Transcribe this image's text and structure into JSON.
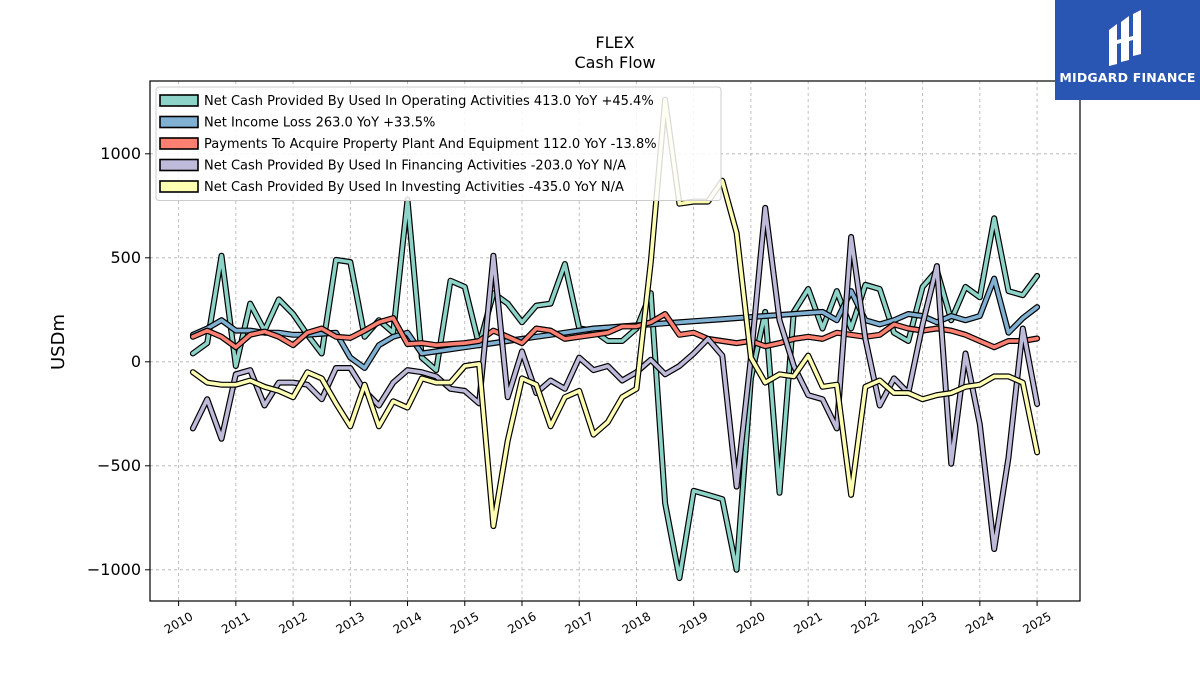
{
  "brand": {
    "name": "MIDGARD FINANCE",
    "color": "#2a56b3"
  },
  "chart_data": {
    "type": "line",
    "title": "FLEX",
    "subtitle": "Cash Flow",
    "xlabel": "",
    "ylabel": "USDm",
    "xlim": [
      2009.5,
      2025.75
    ],
    "ylim": [
      -1150,
      1350
    ],
    "yticks": [
      -1000,
      -500,
      0,
      500,
      1000
    ],
    "xticks": [
      2010,
      2011,
      2012,
      2013,
      2014,
      2015,
      2016,
      2017,
      2018,
      2019,
      2020,
      2021,
      2022,
      2023,
      2024,
      2025
    ],
    "grid": true,
    "legend_position": "top-left",
    "x": [
      2010.25,
      2010.5,
      2010.75,
      2011.0,
      2011.25,
      2011.5,
      2011.75,
      2012.0,
      2012.25,
      2012.5,
      2012.75,
      2013.0,
      2013.25,
      2013.5,
      2013.75,
      2014.0,
      2014.25,
      2014.5,
      2014.75,
      2015.0,
      2015.25,
      2015.5,
      2015.75,
      2016.0,
      2016.25,
      2016.5,
      2016.75,
      2017.0,
      2017.25,
      2017.5,
      2017.75,
      2018.0,
      2018.25,
      2018.5,
      2018.75,
      2019.0,
      2019.25,
      2019.5,
      2019.75,
      2020.0,
      2020.25,
      2020.5,
      2020.75,
      2021.0,
      2021.25,
      2021.5,
      2021.75,
      2022.0,
      2022.25,
      2022.5,
      2022.75,
      2023.0,
      2023.25,
      2023.5,
      2023.75,
      2024.0,
      2024.25,
      2024.5,
      2024.75,
      2025.0
    ],
    "series": [
      {
        "name": "Net Cash Provided By Used In Operating Activities",
        "legend": "Net Cash Provided By Used In Operating Activities  413.0 YoY +45.4%",
        "color": "#8dd3c7",
        "values": [
          40,
          90,
          510,
          -20,
          280,
          150,
          300,
          230,
          130,
          40,
          490,
          480,
          120,
          200,
          140,
          780,
          20,
          -40,
          390,
          360,
          80,
          330,
          280,
          190,
          270,
          280,
          470,
          160,
          150,
          100,
          100,
          160,
          330,
          -680,
          -1040,
          -620,
          -640,
          -660,
          -1000,
          -80,
          240,
          -630,
          240,
          350,
          160,
          340,
          160,
          370,
          350,
          140,
          100,
          360,
          440,
          200,
          360,
          310,
          690,
          340,
          320,
          413
        ]
      },
      {
        "name": "Net Income Loss",
        "legend": "Net Income Loss  263.0 YoY +33.5%",
        "color": "#80b1d3",
        "values": [
          130,
          160,
          200,
          150,
          150,
          140,
          140,
          130,
          130,
          135,
          140,
          20,
          -30,
          80,
          120,
          140,
          40,
          50,
          60,
          70,
          80,
          90,
          100,
          110,
          120,
          130,
          140,
          150,
          160,
          165,
          170,
          175,
          180,
          185,
          190,
          195,
          200,
          205,
          210,
          215,
          220,
          225,
          230,
          235,
          240,
          200,
          340,
          200,
          180,
          200,
          230,
          220,
          190,
          220,
          200,
          220,
          400,
          140,
          210,
          263
        ]
      },
      {
        "name": "Payments To Acquire Property Plant And Equipment",
        "legend": "Payments To Acquire Property Plant And Equipment  112.0 YoY -13.8%",
        "color": "#fb8072",
        "values": [
          120,
          150,
          120,
          70,
          130,
          145,
          120,
          80,
          140,
          160,
          120,
          115,
          150,
          190,
          210,
          85,
          90,
          80,
          85,
          90,
          100,
          150,
          120,
          90,
          160,
          150,
          110,
          120,
          130,
          140,
          170,
          170,
          190,
          230,
          130,
          140,
          110,
          100,
          90,
          100,
          75,
          90,
          110,
          120,
          110,
          140,
          130,
          120,
          130,
          180,
          160,
          150,
          160,
          150,
          130,
          100,
          70,
          100,
          100,
          112
        ]
      },
      {
        "name": "Net Cash Provided By Used In Financing Activities",
        "legend": "Net Cash Provided By Used In Financing Activities  -203.0 YoY N/A",
        "color": "#bebada",
        "values": [
          -320,
          -180,
          -370,
          -60,
          -40,
          -210,
          -100,
          -100,
          -110,
          -180,
          -30,
          -30,
          -140,
          -210,
          -100,
          -40,
          -50,
          -70,
          -130,
          -140,
          -200,
          510,
          -170,
          50,
          -150,
          -90,
          -130,
          20,
          -40,
          -20,
          -90,
          -50,
          10,
          -60,
          -20,
          40,
          110,
          30,
          -600,
          20,
          740,
          200,
          -20,
          -160,
          -180,
          -320,
          600,
          110,
          -210,
          -80,
          -150,
          180,
          460,
          -490,
          40,
          -300,
          -900,
          -460,
          160,
          -203
        ]
      },
      {
        "name": "Net Cash Provided By Used In Investing Activities",
        "legend": "Net Cash Provided By Used In Investing Activities  -435.0 YoY N/A",
        "color": "#ffffb3",
        "values": [
          -50,
          -100,
          -110,
          -110,
          -90,
          -120,
          -140,
          -170,
          -50,
          -80,
          -200,
          -310,
          -110,
          -310,
          -190,
          -220,
          -80,
          -100,
          -100,
          -20,
          -10,
          -790,
          -380,
          -80,
          -110,
          -310,
          -170,
          -140,
          -350,
          -290,
          -170,
          -130,
          480,
          1260,
          760,
          770,
          770,
          870,
          620,
          20,
          -100,
          -60,
          -70,
          30,
          -120,
          -110,
          -640,
          -120,
          -90,
          -150,
          -150,
          -180,
          -160,
          -150,
          -120,
          -110,
          -70,
          -70,
          -100,
          -435
        ]
      }
    ]
  }
}
